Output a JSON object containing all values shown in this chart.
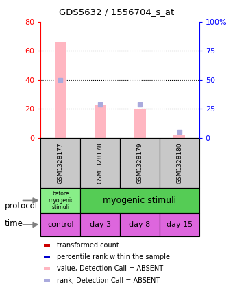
{
  "title": "GDS5632 / 1556704_s_at",
  "samples": [
    "GSM1328177",
    "GSM1328178",
    "GSM1328179",
    "GSM1328180"
  ],
  "bar_values_absent": [
    66.0,
    23.0,
    20.0,
    2.0
  ],
  "rank_values_absent": [
    50.0,
    29.0,
    29.0,
    5.0
  ],
  "bar_color_absent": "#FFB6C1",
  "rank_color_absent": "#AAAADD",
  "ylim_left": [
    0,
    80
  ],
  "ylim_right": [
    0,
    100
  ],
  "yticks_left": [
    0,
    20,
    40,
    60,
    80
  ],
  "yticks_right": [
    0,
    25,
    50,
    75,
    100
  ],
  "ytick_labels_right": [
    "0",
    "25",
    "50",
    "75",
    "100%"
  ],
  "ytick_labels_left": [
    "0",
    "20",
    "40",
    "60",
    "80"
  ],
  "grid_lines": [
    20,
    40,
    60
  ],
  "time_labels": [
    "control",
    "day 3",
    "day 8",
    "day 15"
  ],
  "time_color": "#DD66DD",
  "sample_box_color": "#C8C8C8",
  "protocol_before_color": "#88EE88",
  "protocol_after_color": "#55CC55",
  "legend_items": [
    {
      "color": "#CC0000",
      "label": "transformed count"
    },
    {
      "color": "#0000CC",
      "label": "percentile rank within the sample"
    },
    {
      "color": "#FFB6C1",
      "label": "value, Detection Call = ABSENT"
    },
    {
      "color": "#AAAADD",
      "label": "rank, Detection Call = ABSENT"
    }
  ]
}
